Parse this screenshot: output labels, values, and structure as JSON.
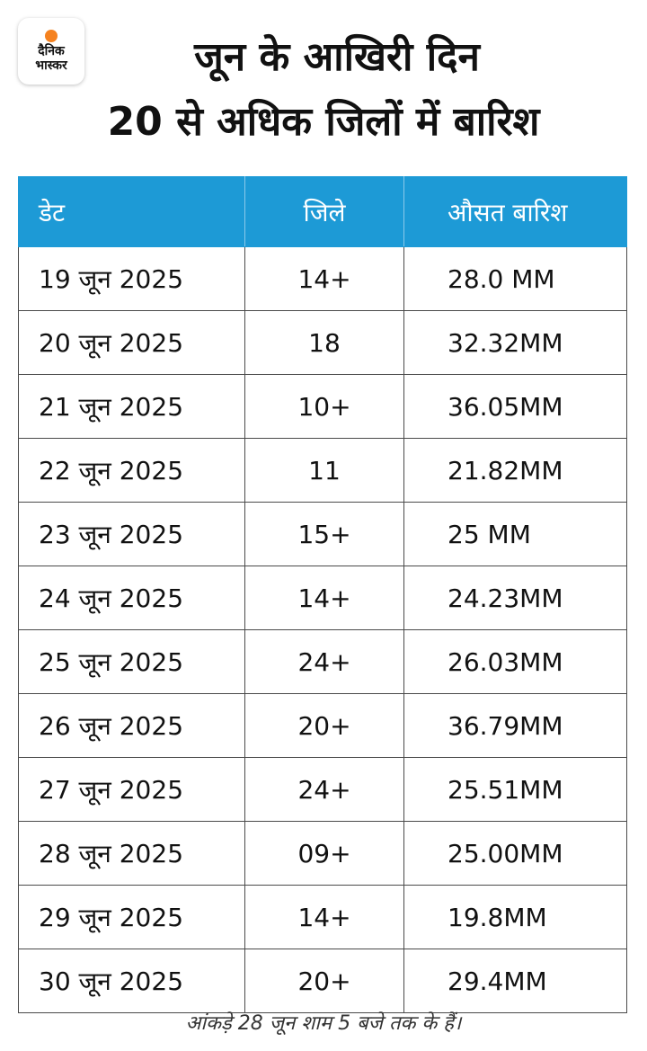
{
  "brand": {
    "line1": "दैनिक",
    "line2": "भास्कर"
  },
  "title": {
    "line1": "जून के आखिरी दिन",
    "line2": "20 से अधिक जिलों में बारिश"
  },
  "table": {
    "headers": [
      "डेट",
      "जिले",
      "औसत बारिश"
    ],
    "rows": [
      [
        "19 जून 2025",
        "14+",
        "28.0 MM"
      ],
      [
        "20 जून 2025",
        "18",
        "32.32MM"
      ],
      [
        "21 जून 2025",
        "10+",
        "36.05MM"
      ],
      [
        "22 जून 2025",
        "11",
        "21.82MM"
      ],
      [
        "23 जून 2025",
        "15+",
        "25 MM"
      ],
      [
        "24 जून 2025",
        "14+",
        "24.23MM"
      ],
      [
        "25 जून 2025",
        "24+",
        "26.03MM"
      ],
      [
        "26 जून 2025",
        "20+",
        "36.79MM"
      ],
      [
        "27 जून 2025",
        "24+",
        "25.51MM"
      ],
      [
        "28 जून 2025",
        "09+",
        "25.00MM"
      ],
      [
        "29 जून 2025",
        "14+",
        "19.8MM"
      ],
      [
        "30 जून 2025",
        "20+",
        "29.4MM"
      ]
    ]
  },
  "footnote": "आंकड़े 28 जून शाम 5 बजे तक के हैं।",
  "colors": {
    "header_bg": "#1d9ad6",
    "header_text": "#ffffff",
    "logo_sun": "#f58220"
  }
}
